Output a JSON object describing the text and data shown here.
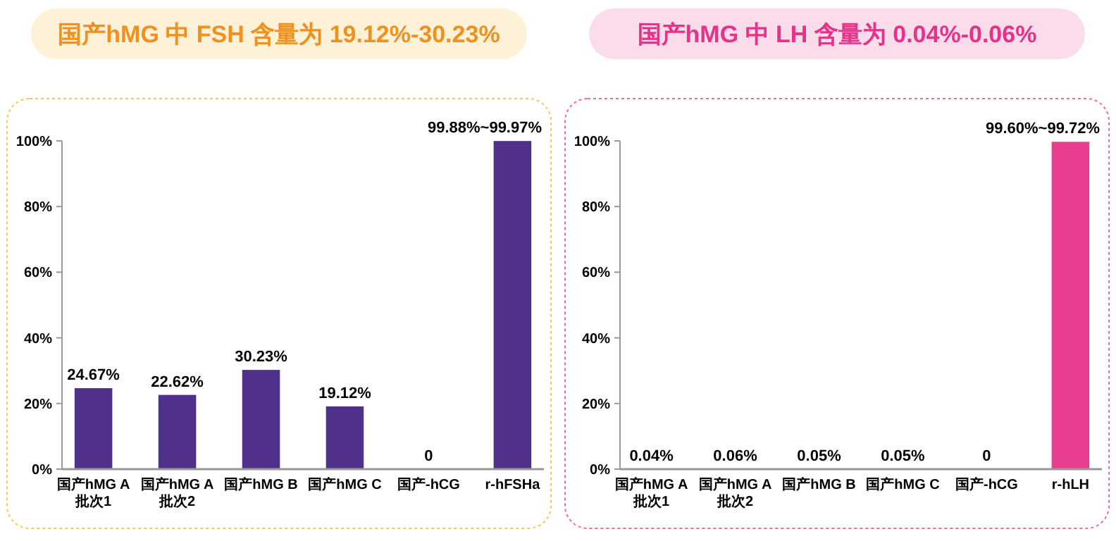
{
  "chart_data": [
    {
      "type": "bar",
      "title": "国产hMG 中 FSH 含量为 19.12%-30.23%",
      "categories": [
        "国产hMG A\n批次1",
        "国产hMG A\n批次2",
        "国产hMG B",
        "国产hMG C",
        "国产-hCG",
        "r-hFSHa"
      ],
      "values": [
        24.67,
        22.62,
        30.23,
        19.12,
        0,
        99.97
      ],
      "value_labels": [
        "24.67%",
        "22.62%",
        "30.23%",
        "19.12%",
        "0",
        "99.88%~99.97%"
      ],
      "color": "#4f318c",
      "ylim": [
        0,
        100
      ],
      "yticks": [
        {
          "value": 0,
          "label": "0%"
        },
        {
          "value": 20,
          "label": "20%"
        },
        {
          "value": 40,
          "label": "40%"
        },
        {
          "value": 60,
          "label": "60%"
        },
        {
          "value": 80,
          "label": "80%"
        },
        {
          "value": 100,
          "label": "100%"
        }
      ]
    },
    {
      "type": "bar",
      "title": "国产hMG 中 LH 含量为 0.04%-0.06%",
      "categories": [
        "国产hMG A\n批次1",
        "国产hMG A\n批次2",
        "国产hMG B",
        "国产hMG C",
        "国产-hCG",
        "r-hLH"
      ],
      "values": [
        0.04,
        0.06,
        0.05,
        0.05,
        0,
        99.72
      ],
      "value_labels": [
        "0.04%",
        "0.06%",
        "0.05%",
        "0.05%",
        "0",
        "99.60%~99.72%"
      ],
      "color": "#e83e8f",
      "ylim": [
        0,
        100
      ],
      "yticks": [
        {
          "value": 0,
          "label": "0%"
        },
        {
          "value": 20,
          "label": "20%"
        },
        {
          "value": 40,
          "label": "40%"
        },
        {
          "value": 60,
          "label": "60%"
        },
        {
          "value": 80,
          "label": "80%"
        },
        {
          "value": 100,
          "label": "100%"
        }
      ]
    }
  ]
}
